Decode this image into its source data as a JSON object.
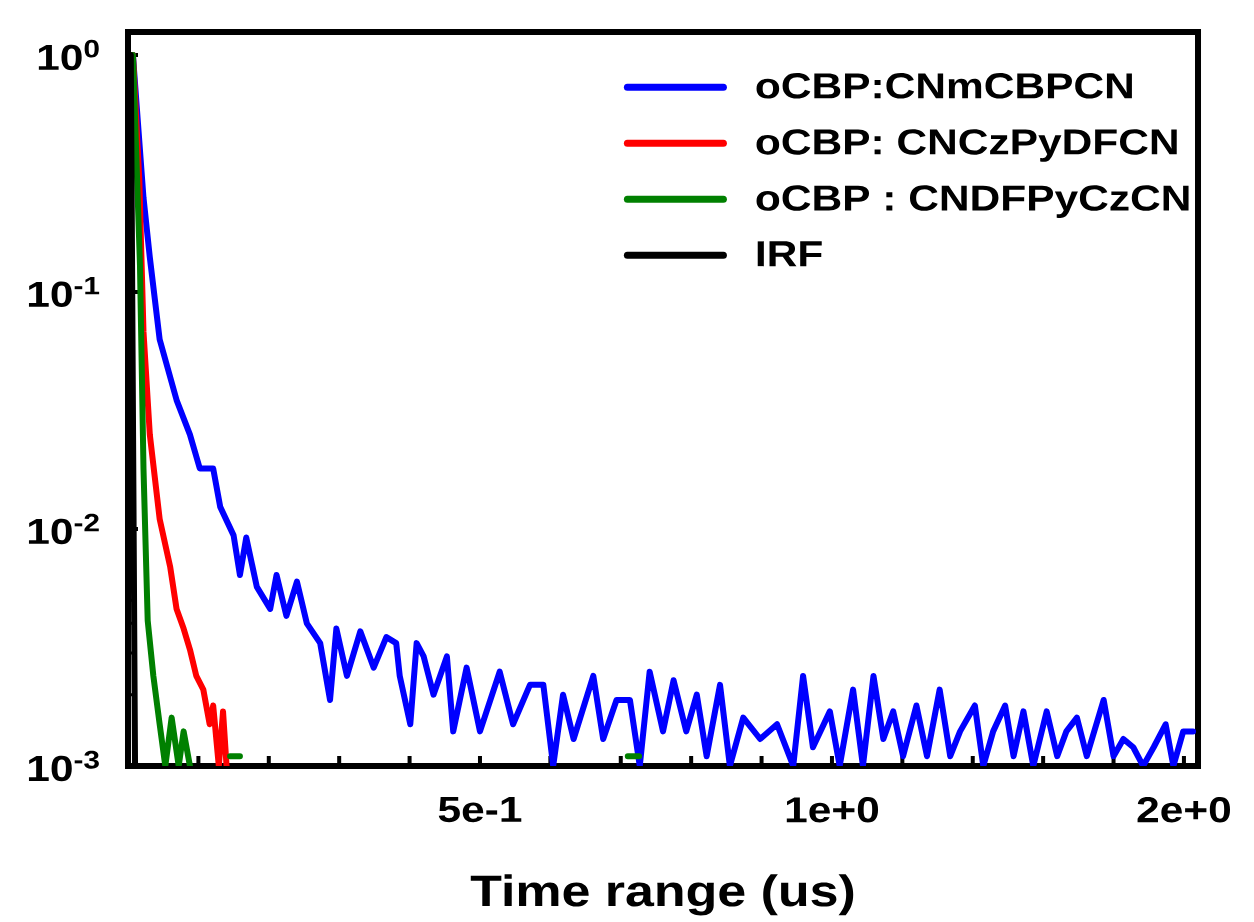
{
  "chart_data": {
    "type": "line",
    "xlabel": "Time range (us)",
    "log": "y",
    "legend": "top right",
    "line_style": "solid",
    "xlim": [
      0,
      1.52
    ],
    "ylim": [
      0.001,
      1.25
    ],
    "xticks": [
      {
        "value": 0.1,
        "label": null
      },
      {
        "value": 0.2,
        "label": null
      },
      {
        "value": 0.3,
        "label": null
      },
      {
        "value": 0.4,
        "label": null
      },
      {
        "value": 0.5,
        "label": "5e-1"
      },
      {
        "value": 0.6,
        "label": null
      },
      {
        "value": 0.7,
        "label": null
      },
      {
        "value": 0.8,
        "label": null
      },
      {
        "value": 0.9,
        "label": null
      },
      {
        "value": 1.0,
        "label": "1e+0"
      },
      {
        "value": 1.1,
        "label": null
      },
      {
        "value": 1.2,
        "label": null
      },
      {
        "value": 1.3,
        "label": null
      },
      {
        "value": 1.4,
        "label": null
      },
      {
        "value": 1.5,
        "label": "2e+0"
      }
    ],
    "yticks": [
      {
        "value": 0.001,
        "label": "10$^{-3}$"
      },
      {
        "value": 0.01,
        "label": "10$^{-2}$"
      },
      {
        "value": 0.1,
        "label": "10$^{-1}$"
      },
      {
        "value": 1,
        "label": "10$^{0}$"
      }
    ],
    "series": [
      {
        "name": "oCBP:CNmCBPCN",
        "color": "#0000ff",
        "x": [
          0.007,
          0.022,
          0.031,
          0.045,
          0.069,
          0.088,
          0.102,
          0.121,
          0.131,
          0.15,
          0.159,
          0.168,
          0.183,
          0.202,
          0.211,
          0.225,
          0.24,
          0.254,
          0.273,
          0.287,
          0.296,
          0.311,
          0.33,
          0.349,
          0.367,
          0.381,
          0.386,
          0.401,
          0.41,
          0.42,
          0.434,
          0.453,
          0.462,
          0.481,
          0.5,
          0.528,
          0.547,
          0.571,
          0.59,
          0.604,
          0.618,
          0.633,
          0.661,
          0.675,
          0.694,
          0.713,
          0.727,
          0.741,
          0.76,
          0.775,
          0.793,
          0.808,
          0.822,
          0.841,
          0.855,
          0.874,
          0.898,
          0.922,
          0.945,
          0.959,
          0.973,
          0.997,
          1.011,
          1.03,
          1.044,
          1.059,
          1.073,
          1.087,
          1.101,
          1.12,
          1.135,
          1.153,
          1.168,
          1.182,
          1.203,
          1.215,
          1.229,
          1.246,
          1.258,
          1.272,
          1.286,
          1.305,
          1.32,
          1.333,
          1.348,
          1.362,
          1.386,
          1.4,
          1.414,
          1.428,
          1.442,
          1.457,
          1.474,
          1.485,
          1.499,
          1.513
        ],
        "values": [
          1.0,
          0.25,
          0.14,
          0.063,
          0.035,
          0.025,
          0.018,
          0.018,
          0.0124,
          0.0094,
          0.0064,
          0.0092,
          0.0057,
          0.0046,
          0.0064,
          0.0043,
          0.006,
          0.004,
          0.0033,
          0.0019,
          0.0038,
          0.0024,
          0.0037,
          0.0026,
          0.0035,
          0.0033,
          0.0024,
          0.0015,
          0.0033,
          0.0029,
          0.002,
          0.0029,
          0.0014,
          0.0026,
          0.0014,
          0.0025,
          0.0015,
          0.0022,
          0.0022,
          0.001,
          0.002,
          0.0013,
          0.0024,
          0.0013,
          0.0019,
          0.0019,
          0.001,
          0.0025,
          0.0014,
          0.0023,
          0.0014,
          0.002,
          0.0011,
          0.0022,
          0.001,
          0.0016,
          0.0013,
          0.0015,
          0.001,
          0.0024,
          0.0012,
          0.0017,
          0.001,
          0.0021,
          0.001,
          0.0024,
          0.0013,
          0.0017,
          0.0011,
          0.0018,
          0.0011,
          0.0021,
          0.0011,
          0.0014,
          0.0018,
          0.001,
          0.0014,
          0.0018,
          0.0011,
          0.0017,
          0.001,
          0.0017,
          0.0011,
          0.0014,
          0.0016,
          0.0011,
          0.0019,
          0.0011,
          0.0013,
          0.0012,
          0.001,
          0.0012,
          0.0015,
          0.001,
          0.0014,
          0.0014
        ]
      },
      {
        "name": "oCBP: CNCzPyDFCN",
        "color": "#ff0000",
        "x": [
          0.007,
          0.016,
          0.022,
          0.031,
          0.045,
          0.06,
          0.069,
          0.079,
          0.088,
          0.097,
          0.107,
          0.116,
          0.121,
          0.129,
          0.135,
          0.14
        ],
        "values": [
          1.0,
          0.3,
          0.068,
          0.025,
          0.011,
          0.0069,
          0.0046,
          0.0038,
          0.0031,
          0.0024,
          0.0021,
          0.0015,
          0.0018,
          0.001,
          0.0017,
          0.001
        ]
      },
      {
        "name": "oCBP : CNDFPyCzCN",
        "color": "#008000",
        "x": [
          0.007,
          0.017,
          0.022,
          0.028,
          0.036,
          0.045,
          0.053,
          0.062,
          0.072,
          0.079,
          0.088,
          0.1,
          0.145,
          0.159,
          0.4,
          0.71,
          0.726
        ],
        "values": [
          1.0,
          0.13,
          0.018,
          0.0041,
          0.0024,
          0.0015,
          0.001,
          0.0016,
          0.001,
          0.0014,
          0.001,
          null,
          0.0011,
          0.0011,
          null,
          0.0011,
          0.0011
        ]
      },
      {
        "name": "IRF",
        "color": "#000000",
        "x": [
          0.004,
          0.006,
          0.008,
          0.01
        ],
        "values": [
          1.0,
          0.1,
          0.01,
          0.001
        ]
      }
    ]
  }
}
